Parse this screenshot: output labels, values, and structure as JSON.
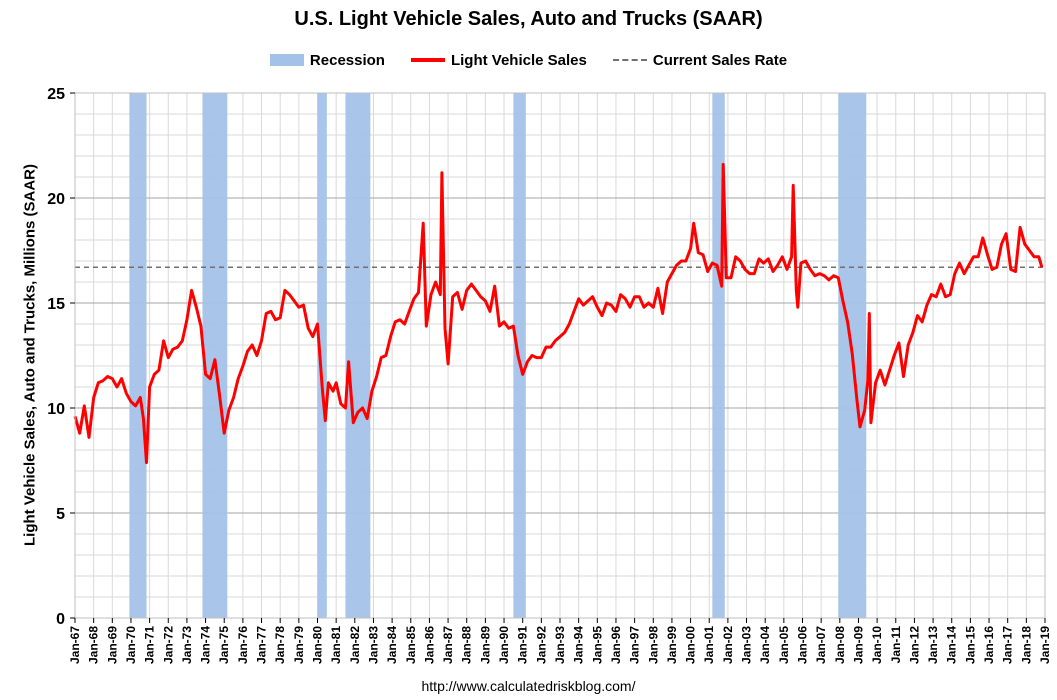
{
  "chart_data": {
    "type": "line",
    "title": "U.S. Light Vehicle Sales, Auto and Trucks (SAAR)",
    "ylabel": "Light Vehicle Sales, Auto and Trucks, Millions (SAAR)",
    "xlabel": "",
    "ylim": [
      0,
      25
    ],
    "y_ticks": [
      0,
      5,
      10,
      15,
      20,
      25
    ],
    "x_ticks": [
      "Jan-67",
      "Jan-68",
      "Jan-69",
      "Jan-70",
      "Jan-71",
      "Jan-72",
      "Jan-73",
      "Jan-74",
      "Jan-75",
      "Jan-76",
      "Jan-77",
      "Jan-78",
      "Jan-79",
      "Jan-80",
      "Jan-81",
      "Jan-82",
      "Jan-83",
      "Jan-84",
      "Jan-85",
      "Jan-86",
      "Jan-87",
      "Jan-88",
      "Jan-89",
      "Jan-90",
      "Jan-91",
      "Jan-92",
      "Jan-93",
      "Jan-94",
      "Jan-95",
      "Jan-96",
      "Jan-97",
      "Jan-98",
      "Jan-99",
      "Jan-00",
      "Jan-01",
      "Jan-02",
      "Jan-03",
      "Jan-04",
      "Jan-05",
      "Jan-06",
      "Jan-07",
      "Jan-08",
      "Jan-09",
      "Jan-10",
      "Jan-11",
      "Jan-12",
      "Jan-13",
      "Jan-14",
      "Jan-15",
      "Jan-16",
      "Jan-17",
      "Jan-18",
      "Jan-19"
    ],
    "grid": true,
    "legend_position": "top-center",
    "legend": [
      {
        "label": "Recession",
        "kind": "band",
        "color": "#a4c2e8"
      },
      {
        "label": "Light Vehicle Sales",
        "kind": "line",
        "color": "#ff0000"
      },
      {
        "label": "Current Sales Rate",
        "kind": "dashed",
        "color": "#707070"
      }
    ],
    "recessions": [
      {
        "start": "1969-12",
        "end": "1970-11"
      },
      {
        "start": "1973-11",
        "end": "1975-03"
      },
      {
        "start": "1980-01",
        "end": "1980-07"
      },
      {
        "start": "1981-07",
        "end": "1982-11"
      },
      {
        "start": "1990-07",
        "end": "1991-03"
      },
      {
        "start": "2001-03",
        "end": "2001-11"
      },
      {
        "start": "2007-12",
        "end": "2009-06"
      }
    ],
    "current_sales_rate": 16.7,
    "series": [
      {
        "name": "Light Vehicle Sales",
        "color": "#ff0000",
        "points": [
          [
            "1967-01",
            9.6
          ],
          [
            "1967-04",
            8.8
          ],
          [
            "1967-07",
            10.1
          ],
          [
            "1967-10",
            8.6
          ],
          [
            "1968-01",
            10.5
          ],
          [
            "1968-04",
            11.2
          ],
          [
            "1968-07",
            11.3
          ],
          [
            "1968-10",
            11.5
          ],
          [
            "1969-01",
            11.4
          ],
          [
            "1969-04",
            11.0
          ],
          [
            "1969-07",
            11.4
          ],
          [
            "1969-10",
            10.7
          ],
          [
            "1970-01",
            10.3
          ],
          [
            "1970-04",
            10.1
          ],
          [
            "1970-07",
            10.5
          ],
          [
            "1970-09",
            9.5
          ],
          [
            "1970-11",
            7.4
          ],
          [
            "1971-01",
            11.0
          ],
          [
            "1971-04",
            11.6
          ],
          [
            "1971-07",
            11.8
          ],
          [
            "1971-10",
            13.2
          ],
          [
            "1972-01",
            12.4
          ],
          [
            "1972-04",
            12.8
          ],
          [
            "1972-07",
            12.9
          ],
          [
            "1972-10",
            13.2
          ],
          [
            "1973-01",
            14.2
          ],
          [
            "1973-04",
            15.6
          ],
          [
            "1973-07",
            14.8
          ],
          [
            "1973-10",
            13.9
          ],
          [
            "1974-01",
            11.6
          ],
          [
            "1974-04",
            11.4
          ],
          [
            "1974-07",
            12.3
          ],
          [
            "1974-10",
            10.6
          ],
          [
            "1975-01",
            8.8
          ],
          [
            "1975-04",
            9.9
          ],
          [
            "1975-07",
            10.5
          ],
          [
            "1975-10",
            11.4
          ],
          [
            "1976-01",
            12.0
          ],
          [
            "1976-04",
            12.7
          ],
          [
            "1976-07",
            13.0
          ],
          [
            "1976-10",
            12.5
          ],
          [
            "1977-01",
            13.2
          ],
          [
            "1977-04",
            14.5
          ],
          [
            "1977-07",
            14.6
          ],
          [
            "1977-10",
            14.2
          ],
          [
            "1978-01",
            14.3
          ],
          [
            "1978-04",
            15.6
          ],
          [
            "1978-07",
            15.4
          ],
          [
            "1978-10",
            15.1
          ],
          [
            "1979-01",
            14.8
          ],
          [
            "1979-04",
            14.9
          ],
          [
            "1979-07",
            13.8
          ],
          [
            "1979-10",
            13.4
          ],
          [
            "1980-01",
            14.0
          ],
          [
            "1980-04",
            11.0
          ],
          [
            "1980-06",
            9.4
          ],
          [
            "1980-08",
            11.2
          ],
          [
            "1980-11",
            10.8
          ],
          [
            "1981-01",
            11.2
          ],
          [
            "1981-04",
            10.2
          ],
          [
            "1981-07",
            10.0
          ],
          [
            "1981-09",
            12.2
          ],
          [
            "1981-12",
            9.3
          ],
          [
            "1982-03",
            9.8
          ],
          [
            "1982-06",
            10.0
          ],
          [
            "1982-09",
            9.5
          ],
          [
            "1982-12",
            10.8
          ],
          [
            "1983-03",
            11.5
          ],
          [
            "1983-06",
            12.4
          ],
          [
            "1983-09",
            12.5
          ],
          [
            "1983-12",
            13.4
          ],
          [
            "1984-03",
            14.1
          ],
          [
            "1984-06",
            14.2
          ],
          [
            "1984-09",
            14.0
          ],
          [
            "1984-12",
            14.6
          ],
          [
            "1985-03",
            15.2
          ],
          [
            "1985-06",
            15.5
          ],
          [
            "1985-09",
            18.8
          ],
          [
            "1985-11",
            13.9
          ],
          [
            "1986-02",
            15.4
          ],
          [
            "1986-05",
            16.0
          ],
          [
            "1986-08",
            15.4
          ],
          [
            "1986-09",
            21.2
          ],
          [
            "1986-11",
            13.8
          ],
          [
            "1987-01",
            12.1
          ],
          [
            "1987-04",
            15.3
          ],
          [
            "1987-07",
            15.5
          ],
          [
            "1987-10",
            14.7
          ],
          [
            "1988-01",
            15.6
          ],
          [
            "1988-04",
            15.9
          ],
          [
            "1988-07",
            15.6
          ],
          [
            "1988-10",
            15.3
          ],
          [
            "1989-01",
            15.1
          ],
          [
            "1989-04",
            14.6
          ],
          [
            "1989-07",
            15.8
          ],
          [
            "1989-10",
            13.9
          ],
          [
            "1990-01",
            14.1
          ],
          [
            "1990-04",
            13.8
          ],
          [
            "1990-07",
            13.9
          ],
          [
            "1990-10",
            12.5
          ],
          [
            "1991-01",
            11.6
          ],
          [
            "1991-04",
            12.2
          ],
          [
            "1991-07",
            12.5
          ],
          [
            "1991-10",
            12.4
          ],
          [
            "1992-01",
            12.4
          ],
          [
            "1992-04",
            12.9
          ],
          [
            "1992-07",
            12.9
          ],
          [
            "1992-10",
            13.2
          ],
          [
            "1993-01",
            13.4
          ],
          [
            "1993-04",
            13.6
          ],
          [
            "1993-07",
            14.0
          ],
          [
            "1993-10",
            14.6
          ],
          [
            "1994-01",
            15.2
          ],
          [
            "1994-04",
            14.9
          ],
          [
            "1994-07",
            15.1
          ],
          [
            "1994-10",
            15.3
          ],
          [
            "1995-01",
            14.8
          ],
          [
            "1995-04",
            14.4
          ],
          [
            "1995-07",
            15.0
          ],
          [
            "1995-10",
            14.9
          ],
          [
            "1996-01",
            14.6
          ],
          [
            "1996-04",
            15.4
          ],
          [
            "1996-07",
            15.2
          ],
          [
            "1996-10",
            14.8
          ],
          [
            "1997-01",
            15.3
          ],
          [
            "1997-04",
            15.3
          ],
          [
            "1997-07",
            14.8
          ],
          [
            "1997-10",
            15.0
          ],
          [
            "1998-01",
            14.8
          ],
          [
            "1998-04",
            15.7
          ],
          [
            "1998-07",
            14.5
          ],
          [
            "1998-10",
            16.0
          ],
          [
            "1999-01",
            16.4
          ],
          [
            "1999-04",
            16.8
          ],
          [
            "1999-07",
            17.0
          ],
          [
            "1999-10",
            17.0
          ],
          [
            "2000-01",
            17.6
          ],
          [
            "2000-03",
            18.8
          ],
          [
            "2000-06",
            17.4
          ],
          [
            "2000-09",
            17.3
          ],
          [
            "2000-12",
            16.5
          ],
          [
            "2001-03",
            16.9
          ],
          [
            "2001-06",
            16.8
          ],
          [
            "2001-09",
            15.8
          ],
          [
            "2001-10",
            21.6
          ],
          [
            "2001-12",
            16.2
          ],
          [
            "2002-03",
            16.2
          ],
          [
            "2002-06",
            17.2
          ],
          [
            "2002-09",
            17.0
          ],
          [
            "2002-12",
            16.6
          ],
          [
            "2003-03",
            16.4
          ],
          [
            "2003-06",
            16.4
          ],
          [
            "2003-09",
            17.1
          ],
          [
            "2003-12",
            16.9
          ],
          [
            "2004-03",
            17.1
          ],
          [
            "2004-06",
            16.5
          ],
          [
            "2004-09",
            16.8
          ],
          [
            "2004-12",
            17.2
          ],
          [
            "2005-03",
            16.6
          ],
          [
            "2005-06",
            17.2
          ],
          [
            "2005-07",
            20.6
          ],
          [
            "2005-09",
            15.6
          ],
          [
            "2005-10",
            14.8
          ],
          [
            "2005-12",
            16.9
          ],
          [
            "2006-03",
            17.0
          ],
          [
            "2006-06",
            16.6
          ],
          [
            "2006-09",
            16.3
          ],
          [
            "2006-12",
            16.4
          ],
          [
            "2007-03",
            16.3
          ],
          [
            "2007-06",
            16.1
          ],
          [
            "2007-09",
            16.3
          ],
          [
            "2007-12",
            16.2
          ],
          [
            "2008-03",
            15.1
          ],
          [
            "2008-06",
            14.1
          ],
          [
            "2008-09",
            12.6
          ],
          [
            "2008-12",
            10.4
          ],
          [
            "2009-02",
            9.1
          ],
          [
            "2009-05",
            9.9
          ],
          [
            "2009-07",
            11.3
          ],
          [
            "2009-08",
            14.5
          ],
          [
            "2009-09",
            9.3
          ],
          [
            "2009-12",
            11.2
          ],
          [
            "2010-03",
            11.8
          ],
          [
            "2010-06",
            11.1
          ],
          [
            "2010-09",
            11.8
          ],
          [
            "2010-12",
            12.5
          ],
          [
            "2011-03",
            13.1
          ],
          [
            "2011-06",
            11.5
          ],
          [
            "2011-09",
            13.0
          ],
          [
            "2011-12",
            13.6
          ],
          [
            "2012-03",
            14.4
          ],
          [
            "2012-06",
            14.1
          ],
          [
            "2012-09",
            14.9
          ],
          [
            "2012-12",
            15.4
          ],
          [
            "2013-03",
            15.3
          ],
          [
            "2013-06",
            15.9
          ],
          [
            "2013-09",
            15.3
          ],
          [
            "2013-12",
            15.4
          ],
          [
            "2014-03",
            16.4
          ],
          [
            "2014-06",
            16.9
          ],
          [
            "2014-09",
            16.4
          ],
          [
            "2014-12",
            16.8
          ],
          [
            "2015-03",
            17.2
          ],
          [
            "2015-06",
            17.2
          ],
          [
            "2015-09",
            18.1
          ],
          [
            "2015-12",
            17.3
          ],
          [
            "2016-03",
            16.6
          ],
          [
            "2016-06",
            16.7
          ],
          [
            "2016-09",
            17.8
          ],
          [
            "2016-12",
            18.3
          ],
          [
            "2017-03",
            16.6
          ],
          [
            "2017-06",
            16.5
          ],
          [
            "2017-09",
            18.6
          ],
          [
            "2017-12",
            17.8
          ],
          [
            "2018-03",
            17.5
          ],
          [
            "2018-06",
            17.2
          ],
          [
            "2018-09",
            17.2
          ],
          [
            "2018-11",
            16.7
          ]
        ]
      }
    ]
  },
  "footer": {
    "url": "http://www.calculatedriskblog.com/"
  }
}
